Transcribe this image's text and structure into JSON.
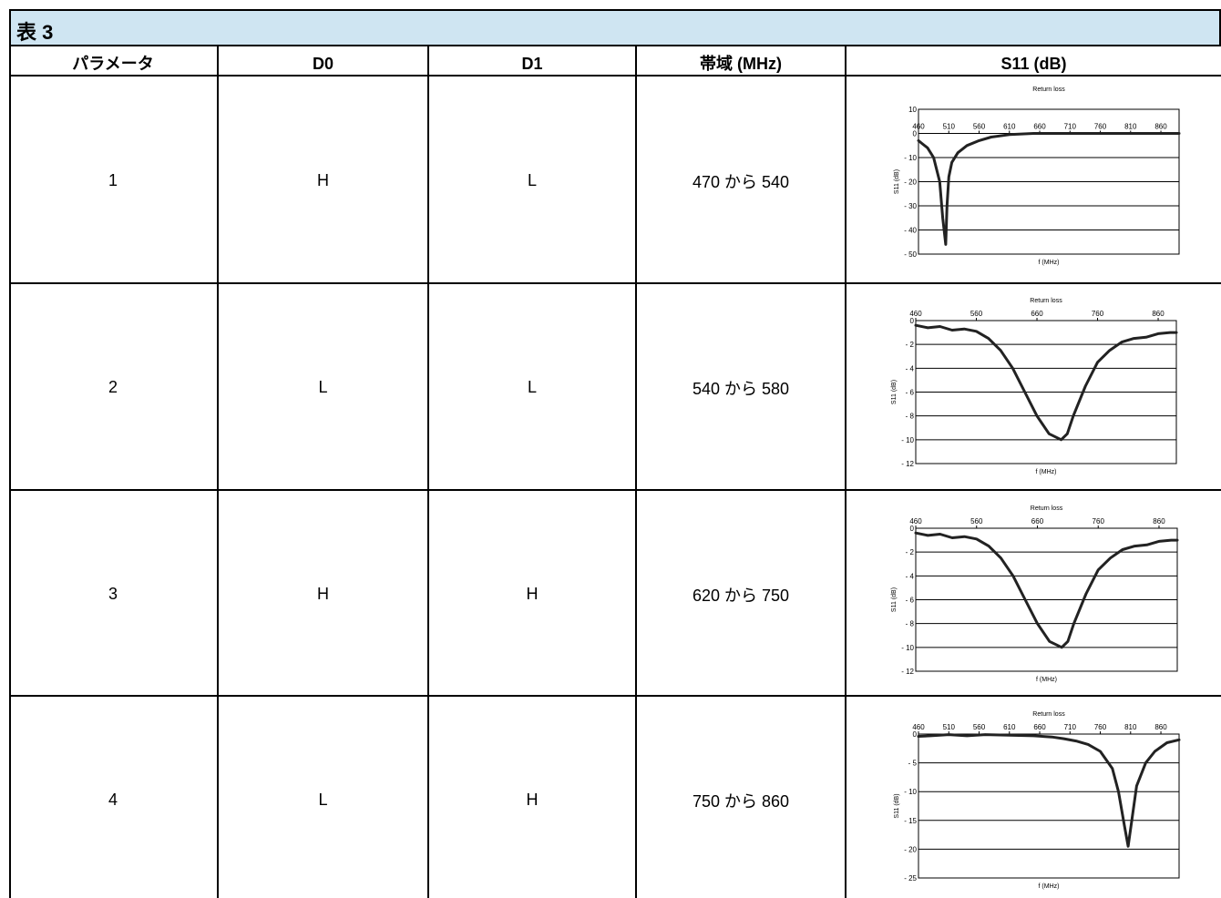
{
  "table": {
    "title": "表 3",
    "headers": [
      "パラメータ",
      "D0",
      "D1",
      "帯域 (MHz)",
      "S11 (dB)"
    ],
    "rows": [
      {
        "param": "1",
        "d0": "H",
        "d1": "L",
        "band": "470 から 540"
      },
      {
        "param": "2",
        "d0": "L",
        "d1": "L",
        "band": "540 から 580"
      },
      {
        "param": "3",
        "d0": "H",
        "d1": "H",
        "band": "620 から 750"
      },
      {
        "param": "4",
        "d0": "L",
        "d1": "H",
        "band": "750 から 860"
      }
    ]
  },
  "chart_data": [
    {
      "type": "line",
      "title": "Return loss",
      "xlabel": "f (MHz)",
      "ylabel": "S11 (dB)",
      "xlim": [
        460,
        890
      ],
      "ylim": [
        -50,
        10
      ],
      "xticks": [
        460,
        510,
        560,
        610,
        660,
        710,
        760,
        810,
        860
      ],
      "yticks": [
        10,
        0,
        -10,
        -20,
        -30,
        -40,
        -50
      ],
      "ytick_labels": [
        "10",
        "0",
        "- 10",
        "- 20",
        "- 30",
        "- 40",
        "- 50"
      ],
      "grid": "horizontal",
      "series": [
        {
          "x": [
            460,
            465,
            475,
            485,
            495,
            500,
            505,
            507,
            510,
            515,
            525,
            540,
            560,
            580,
            610,
            650,
            700,
            760,
            820,
            870,
            890
          ],
          "y": [
            -3,
            -4,
            -6,
            -10,
            -20,
            -35,
            -46,
            -30,
            -18,
            -12,
            -8,
            -5,
            -3,
            -1.5,
            -0.5,
            0,
            0,
            0,
            0,
            0,
            0
          ]
        }
      ]
    },
    {
      "type": "line",
      "title": "Return loss",
      "xlabel": "f (MHz)",
      "ylabel": "S11 (dB)",
      "xlim": [
        460,
        890
      ],
      "ylim": [
        -12,
        0
      ],
      "xticks": [
        460,
        560,
        660,
        760,
        860
      ],
      "yticks": [
        0,
        -2,
        -4,
        -6,
        -8,
        -10,
        -12
      ],
      "ytick_labels": [
        "0",
        "- 2",
        "- 4",
        "- 6",
        "- 8",
        "- 10",
        "- 12"
      ],
      "grid": "horizontal",
      "series": [
        {
          "x": [
            460,
            480,
            500,
            520,
            540,
            560,
            580,
            600,
            620,
            640,
            660,
            680,
            700,
            710,
            720,
            740,
            760,
            780,
            800,
            820,
            840,
            860,
            880,
            890
          ],
          "y": [
            -0.4,
            -0.6,
            -0.5,
            -0.8,
            -0.7,
            -0.9,
            -1.5,
            -2.5,
            -4,
            -6,
            -8,
            -9.5,
            -10,
            -9.5,
            -8,
            -5.5,
            -3.5,
            -2.5,
            -1.8,
            -1.5,
            -1.4,
            -1.1,
            -1,
            -1
          ]
        }
      ]
    },
    {
      "type": "line",
      "title": "Return loss",
      "xlabel": "f (MHz)",
      "ylabel": "S11 (dB)",
      "xlim": [
        460,
        890
      ],
      "ylim": [
        -12,
        0
      ],
      "xticks": [
        460,
        560,
        660,
        760,
        860
      ],
      "yticks": [
        0,
        -2,
        -4,
        -6,
        -8,
        -10,
        -12
      ],
      "ytick_labels": [
        "0",
        "- 2",
        "- 4",
        "- 6",
        "- 8",
        "- 10",
        "- 12"
      ],
      "grid": "horizontal",
      "series": [
        {
          "x": [
            460,
            480,
            500,
            520,
            540,
            560,
            580,
            600,
            620,
            640,
            660,
            680,
            700,
            710,
            720,
            740,
            760,
            780,
            800,
            820,
            840,
            860,
            880,
            890
          ],
          "y": [
            -0.4,
            -0.6,
            -0.5,
            -0.8,
            -0.7,
            -0.9,
            -1.5,
            -2.5,
            -4,
            -6,
            -8,
            -9.5,
            -10,
            -9.5,
            -8,
            -5.5,
            -3.5,
            -2.5,
            -1.8,
            -1.5,
            -1.4,
            -1.1,
            -1,
            -1
          ]
        }
      ]
    },
    {
      "type": "line",
      "title": "Return loss",
      "xlabel": "f (MHz)",
      "ylabel": "S11 (dB)",
      "xlim": [
        460,
        890
      ],
      "ylim": [
        -25,
        0
      ],
      "xticks": [
        460,
        510,
        560,
        610,
        660,
        710,
        760,
        810,
        860
      ],
      "yticks": [
        0,
        -5,
        -10,
        -15,
        -20,
        -25
      ],
      "ytick_labels": [
        "0",
        "- 5",
        "- 10",
        "- 15",
        "- 20",
        "- 25"
      ],
      "grid": "horizontal",
      "series": [
        {
          "x": [
            460,
            480,
            510,
            540,
            570,
            610,
            650,
            680,
            700,
            720,
            740,
            760,
            780,
            790,
            800,
            806,
            812,
            820,
            835,
            850,
            870,
            890
          ],
          "y": [
            -0.4,
            -0.3,
            -0.1,
            -0.3,
            -0.1,
            -0.2,
            -0.3,
            -0.5,
            -0.8,
            -1.2,
            -1.8,
            -3,
            -6,
            -10,
            -16,
            -19.5,
            -15,
            -9,
            -5,
            -3,
            -1.5,
            -1
          ]
        }
      ]
    }
  ]
}
